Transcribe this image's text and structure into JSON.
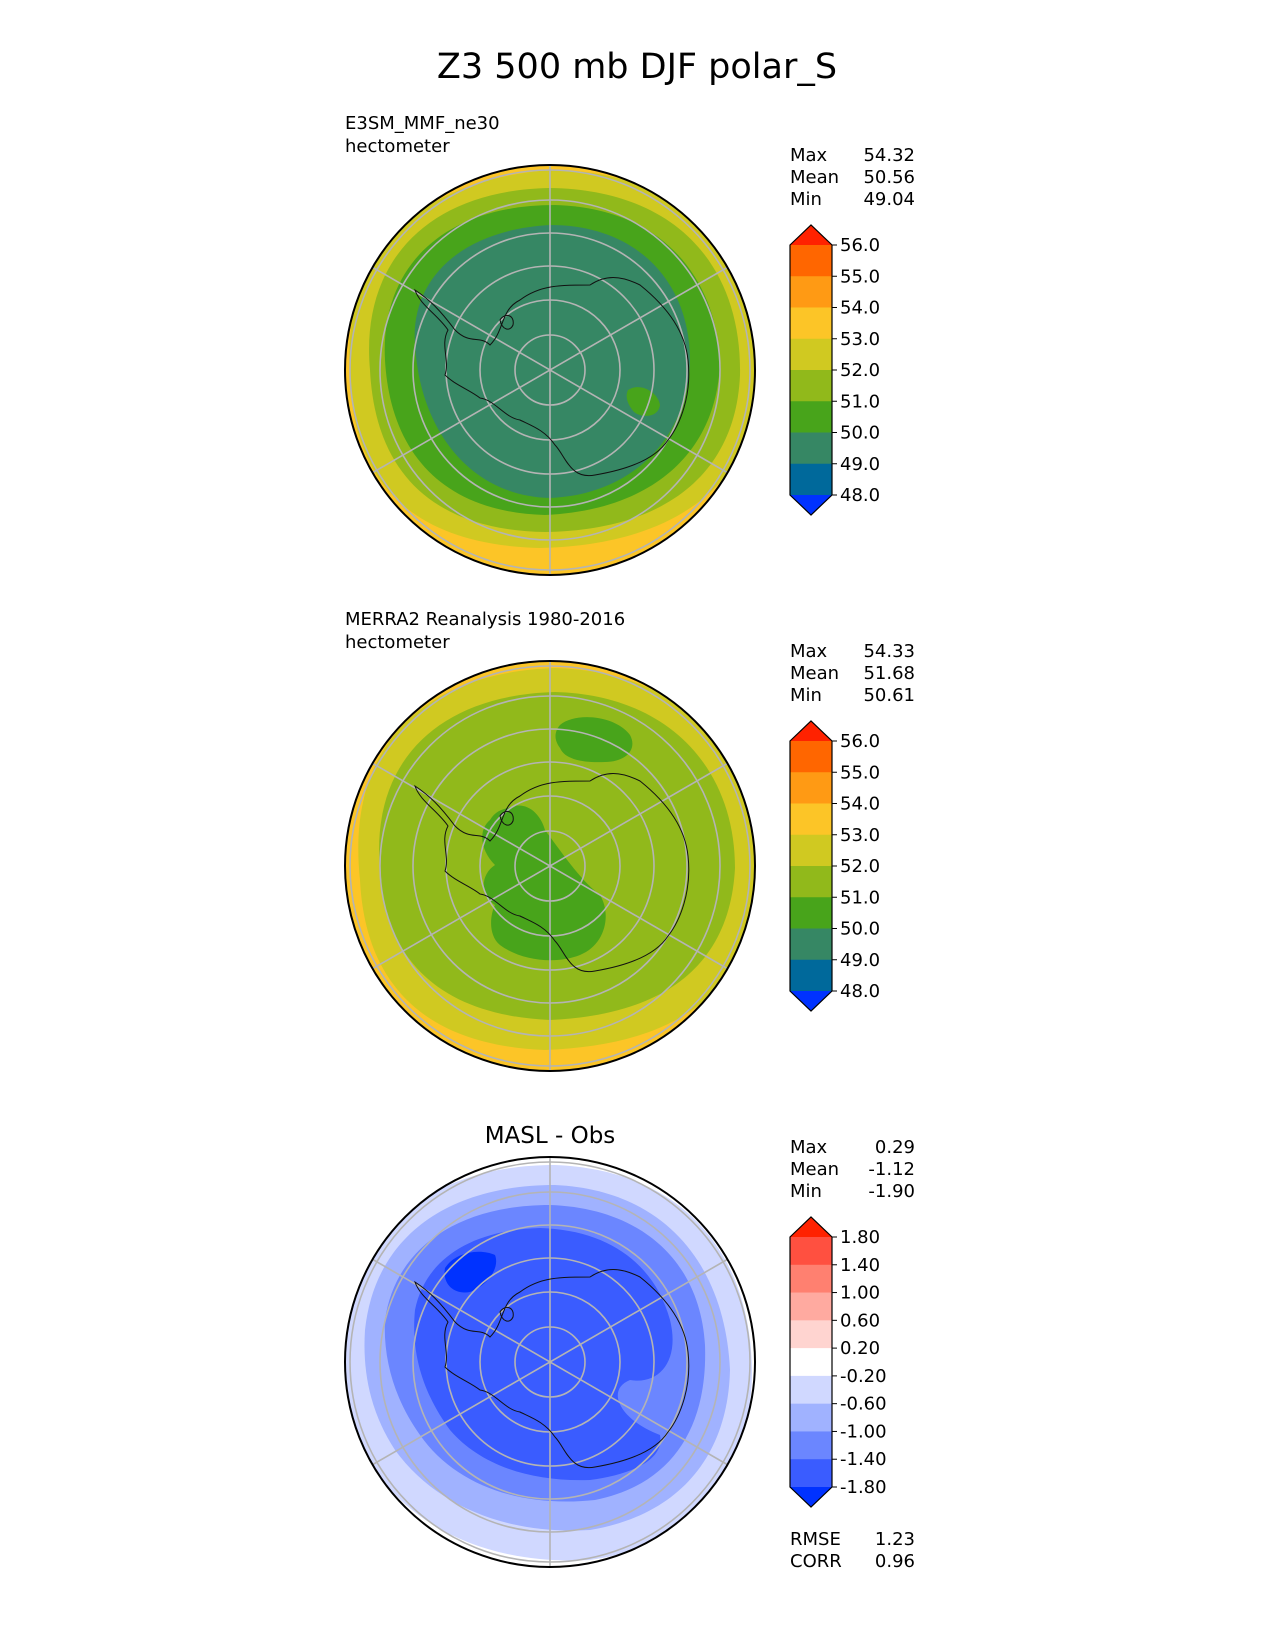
{
  "chart_data": {
    "type": "contour_map",
    "title": "Z3 500 mb DJF polar_S",
    "projection": "south polar stereographic",
    "panels": [
      {
        "id": "test",
        "label_line1": "E3SM_MMF_ne30",
        "label_line2": "hectometer",
        "stats": {
          "max": "54.32",
          "mean": "50.56",
          "min": "49.04"
        },
        "colorbar": {
          "ticks": [
            "56.0",
            "55.0",
            "54.0",
            "53.0",
            "52.0",
            "51.0",
            "50.0",
            "49.0",
            "48.0"
          ],
          "colors": [
            "#ff2200",
            "#ff6600",
            "#ff9a14",
            "#fcc527",
            "#d0c921",
            "#91b91b",
            "#48a41b",
            "#368764",
            "#00699b",
            "#0032ff"
          ]
        },
        "regions": [
          {
            "level": "53-54",
            "color": "#fcc527"
          },
          {
            "level": "52-53",
            "color": "#d0c921"
          },
          {
            "level": "51-52",
            "color": "#91b91b"
          },
          {
            "level": "50-51",
            "color": "#48a41b"
          },
          {
            "level": "49-50",
            "color": "#368764"
          }
        ]
      },
      {
        "id": "reference",
        "label_line1": "MERRA2 Reanalysis 1980-2016",
        "label_line2": "hectometer",
        "stats": {
          "max": "54.33",
          "mean": "51.68",
          "min": "50.61"
        },
        "colorbar": {
          "ticks": [
            "56.0",
            "55.0",
            "54.0",
            "53.0",
            "52.0",
            "51.0",
            "50.0",
            "49.0",
            "48.0"
          ],
          "colors": [
            "#ff2200",
            "#ff6600",
            "#ff9a14",
            "#fcc527",
            "#d0c921",
            "#91b91b",
            "#48a41b",
            "#368764",
            "#00699b",
            "#0032ff"
          ]
        },
        "regions": [
          {
            "level": "53-54",
            "color": "#fcc527"
          },
          {
            "level": "52-53",
            "color": "#d0c921"
          },
          {
            "level": "51-52",
            "color": "#91b91b"
          },
          {
            "level": "50-51",
            "color": "#48a41b"
          }
        ]
      },
      {
        "id": "diff",
        "title": "MASL - Obs",
        "stats": {
          "max": "0.29",
          "mean": "-1.12",
          "min": "-1.90"
        },
        "colorbar": {
          "ticks": [
            "1.80",
            "1.40",
            "1.00",
            "0.60",
            "0.20",
            "-0.20",
            "-0.60",
            "-1.00",
            "-1.40",
            "-1.80"
          ],
          "colors": [
            "#ff2200",
            "#ff5040",
            "#ff8070",
            "#ffaaa0",
            "#ffd4d0",
            "#ffffff",
            "#d0d8ff",
            "#a0b2ff",
            "#6b86ff",
            "#3a5cff",
            "#0032ff"
          ]
        },
        "regions": [
          {
            "level": "-0.6 to -0.2",
            "color": "#d0d8ff"
          },
          {
            "level": "-1.0 to -0.6",
            "color": "#a0b2ff"
          },
          {
            "level": "-1.4 to -1.0",
            "color": "#6b86ff"
          },
          {
            "level": "-1.8 to -1.4",
            "color": "#3a5cff"
          },
          {
            "level": "< -1.8",
            "color": "#0032ff"
          }
        ],
        "metrics": {
          "rmse": "1.23",
          "corr": "0.96"
        }
      }
    ],
    "labels": {
      "max": "Max",
      "mean": "Mean",
      "min": "Min",
      "rmse": "RMSE",
      "corr": "CORR"
    }
  }
}
